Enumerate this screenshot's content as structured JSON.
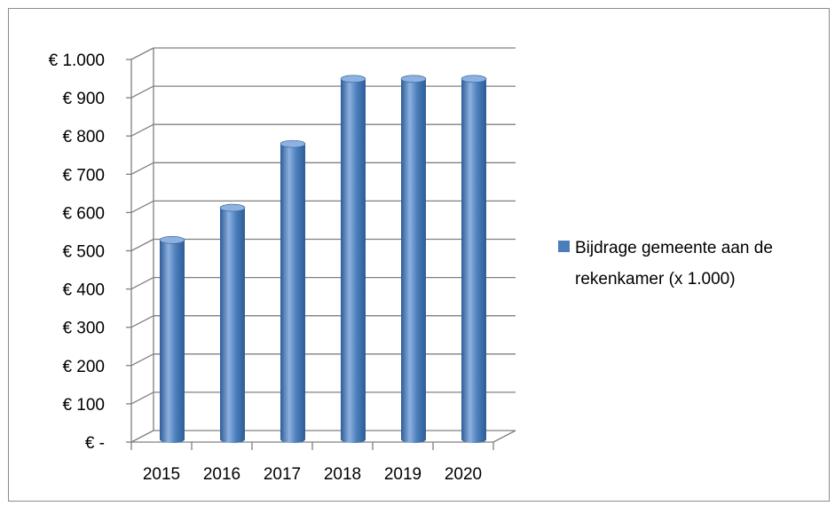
{
  "chart_data": {
    "type": "bar",
    "categories": [
      "2015",
      "2016",
      "2017",
      "2018",
      "2019",
      "2020"
    ],
    "series": [
      {
        "name": "Bijdrage gemeente aan de rekenkamer (x 1.000)",
        "values": [
          519,
          603,
          770,
          940,
          940,
          940
        ]
      }
    ],
    "ylim": [
      0,
      1000
    ],
    "y_ticks": [
      0,
      100,
      200,
      300,
      400,
      500,
      600,
      700,
      800,
      900,
      1000
    ],
    "y_tick_labels": [
      "€ -",
      "€ 100",
      "€ 200",
      "€ 300",
      "€ 400",
      "€ 500",
      "€ 600",
      "€ 700",
      "€ 800",
      "€ 900",
      "€ 1.000"
    ],
    "title": "",
    "xlabel": "",
    "ylabel": "",
    "grid": true,
    "legend_position": "right",
    "legend_lines": [
      "Bijdrage gemeente aan de",
      "rekenkamer (x 1.000)"
    ],
    "colors": {
      "bar_main": "#4a7ebb",
      "bar_light": "#8db1e0",
      "bar_dark": "#2e5c96",
      "grid": "#808080",
      "legend_swatch": "#4a7ebb"
    }
  }
}
